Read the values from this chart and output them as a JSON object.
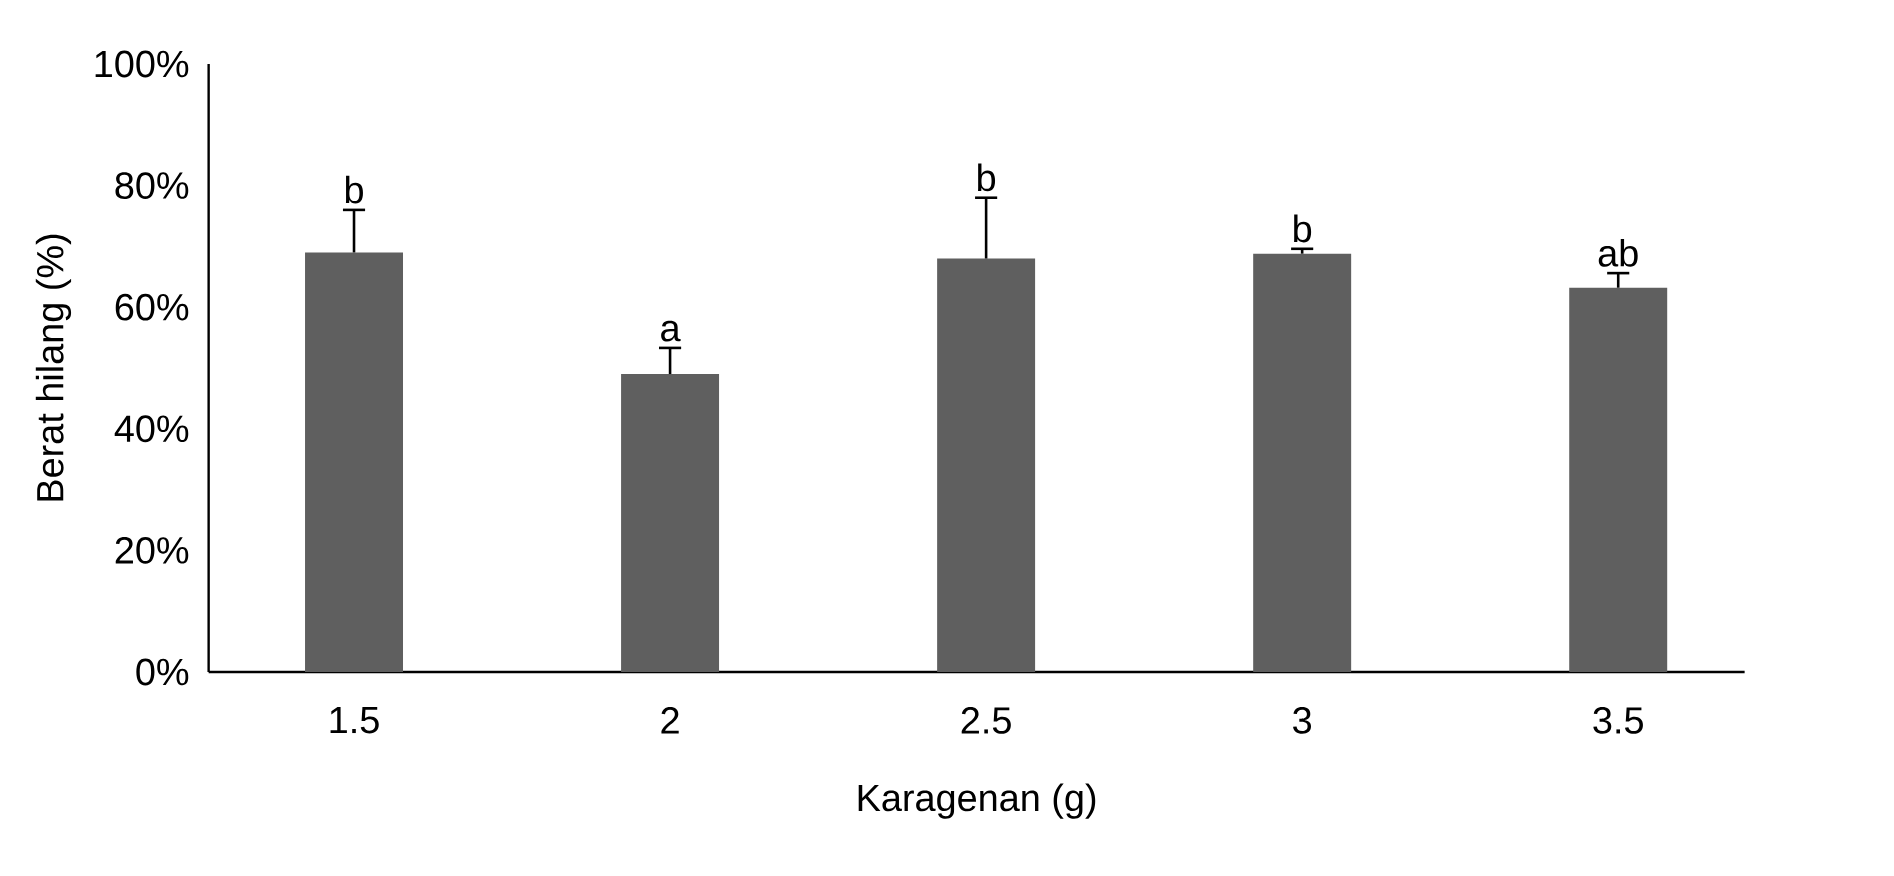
{
  "chart_data": {
    "type": "bar",
    "xlabel": "Karagenan (g)",
    "ylabel": "Berat hilang (%)",
    "categories": [
      "1.5",
      "2",
      "2.5",
      "3",
      "3.5"
    ],
    "values": [
      69,
      49,
      68,
      68.8,
      63.2
    ],
    "color": "#5f5f5f",
    "errors": [
      [
        69,
        76
      ],
      [
        49,
        53.3
      ],
      [
        68,
        78
      ],
      [
        68.8,
        69.6
      ],
      [
        63.2,
        65.6
      ]
    ],
    "ylim": [
      0,
      100
    ],
    "yticks": [
      {
        "value": 0,
        "label": "0%"
      },
      {
        "value": 20,
        "label": "20%"
      },
      {
        "value": 40,
        "label": "40%"
      },
      {
        "value": 60,
        "label": "60%"
      },
      {
        "value": 80,
        "label": "80%"
      },
      {
        "value": 100,
        "label": "100%"
      }
    ],
    "grid": false,
    "annotations": [
      {
        "text": "b",
        "x": "1.5",
        "y": 76
      },
      {
        "text": "a",
        "x": "2",
        "y": 53.3
      },
      {
        "text": "b",
        "x": "2.5",
        "y": 78
      },
      {
        "text": "b",
        "x": "3",
        "y": 69.6
      },
      {
        "text": "ab",
        "x": "3.5",
        "y": 65.6
      }
    ]
  }
}
